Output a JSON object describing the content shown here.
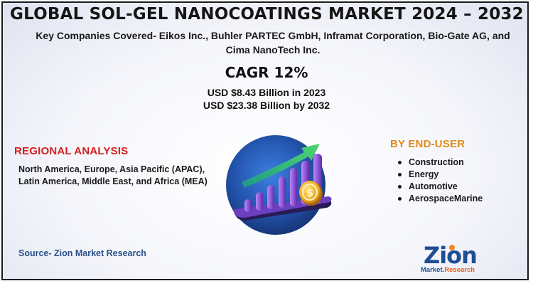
{
  "title": "GLOBAL SOL-GEL NANOCOATINGS MARKET 2024 – 2032",
  "companies": "Key Companies Covered- Eikos Inc., Buhler PARTEC GmbH, Inframat Corporation, Bio-Gate AG, and Cima NanoTech Inc.",
  "cagr": "CAGR 12%",
  "value_2023": "USD $8.43 Billion in 2023",
  "value_2032": "USD $23.38 Billion by 2032",
  "regional": {
    "heading": "REGIONAL ANALYSIS",
    "body": "North America, Europe, Asia Pacific (APAC), Latin America, Middle East, and Africa (MEA)"
  },
  "end_user": {
    "heading": "BY END-USER",
    "items": [
      "Construction",
      "Energy",
      "Automotive",
      "AerospaceMarine"
    ]
  },
  "source": "Source- Zion Market Research",
  "logo": {
    "main": "Zion",
    "sub_left": "Market.",
    "sub_right": "Research"
  },
  "illustration": {
    "icon": "growth-bar-chart-icon",
    "coin_symbol": "$"
  },
  "colors": {
    "regional_heading": "#d32020",
    "end_user_heading": "#e08a1a",
    "source_text": "#2a4f8c",
    "circle_fill": "#1d4f9c",
    "bars": "#9a5ad9",
    "arrow": "#35c07a",
    "coin": "#f0b429"
  }
}
